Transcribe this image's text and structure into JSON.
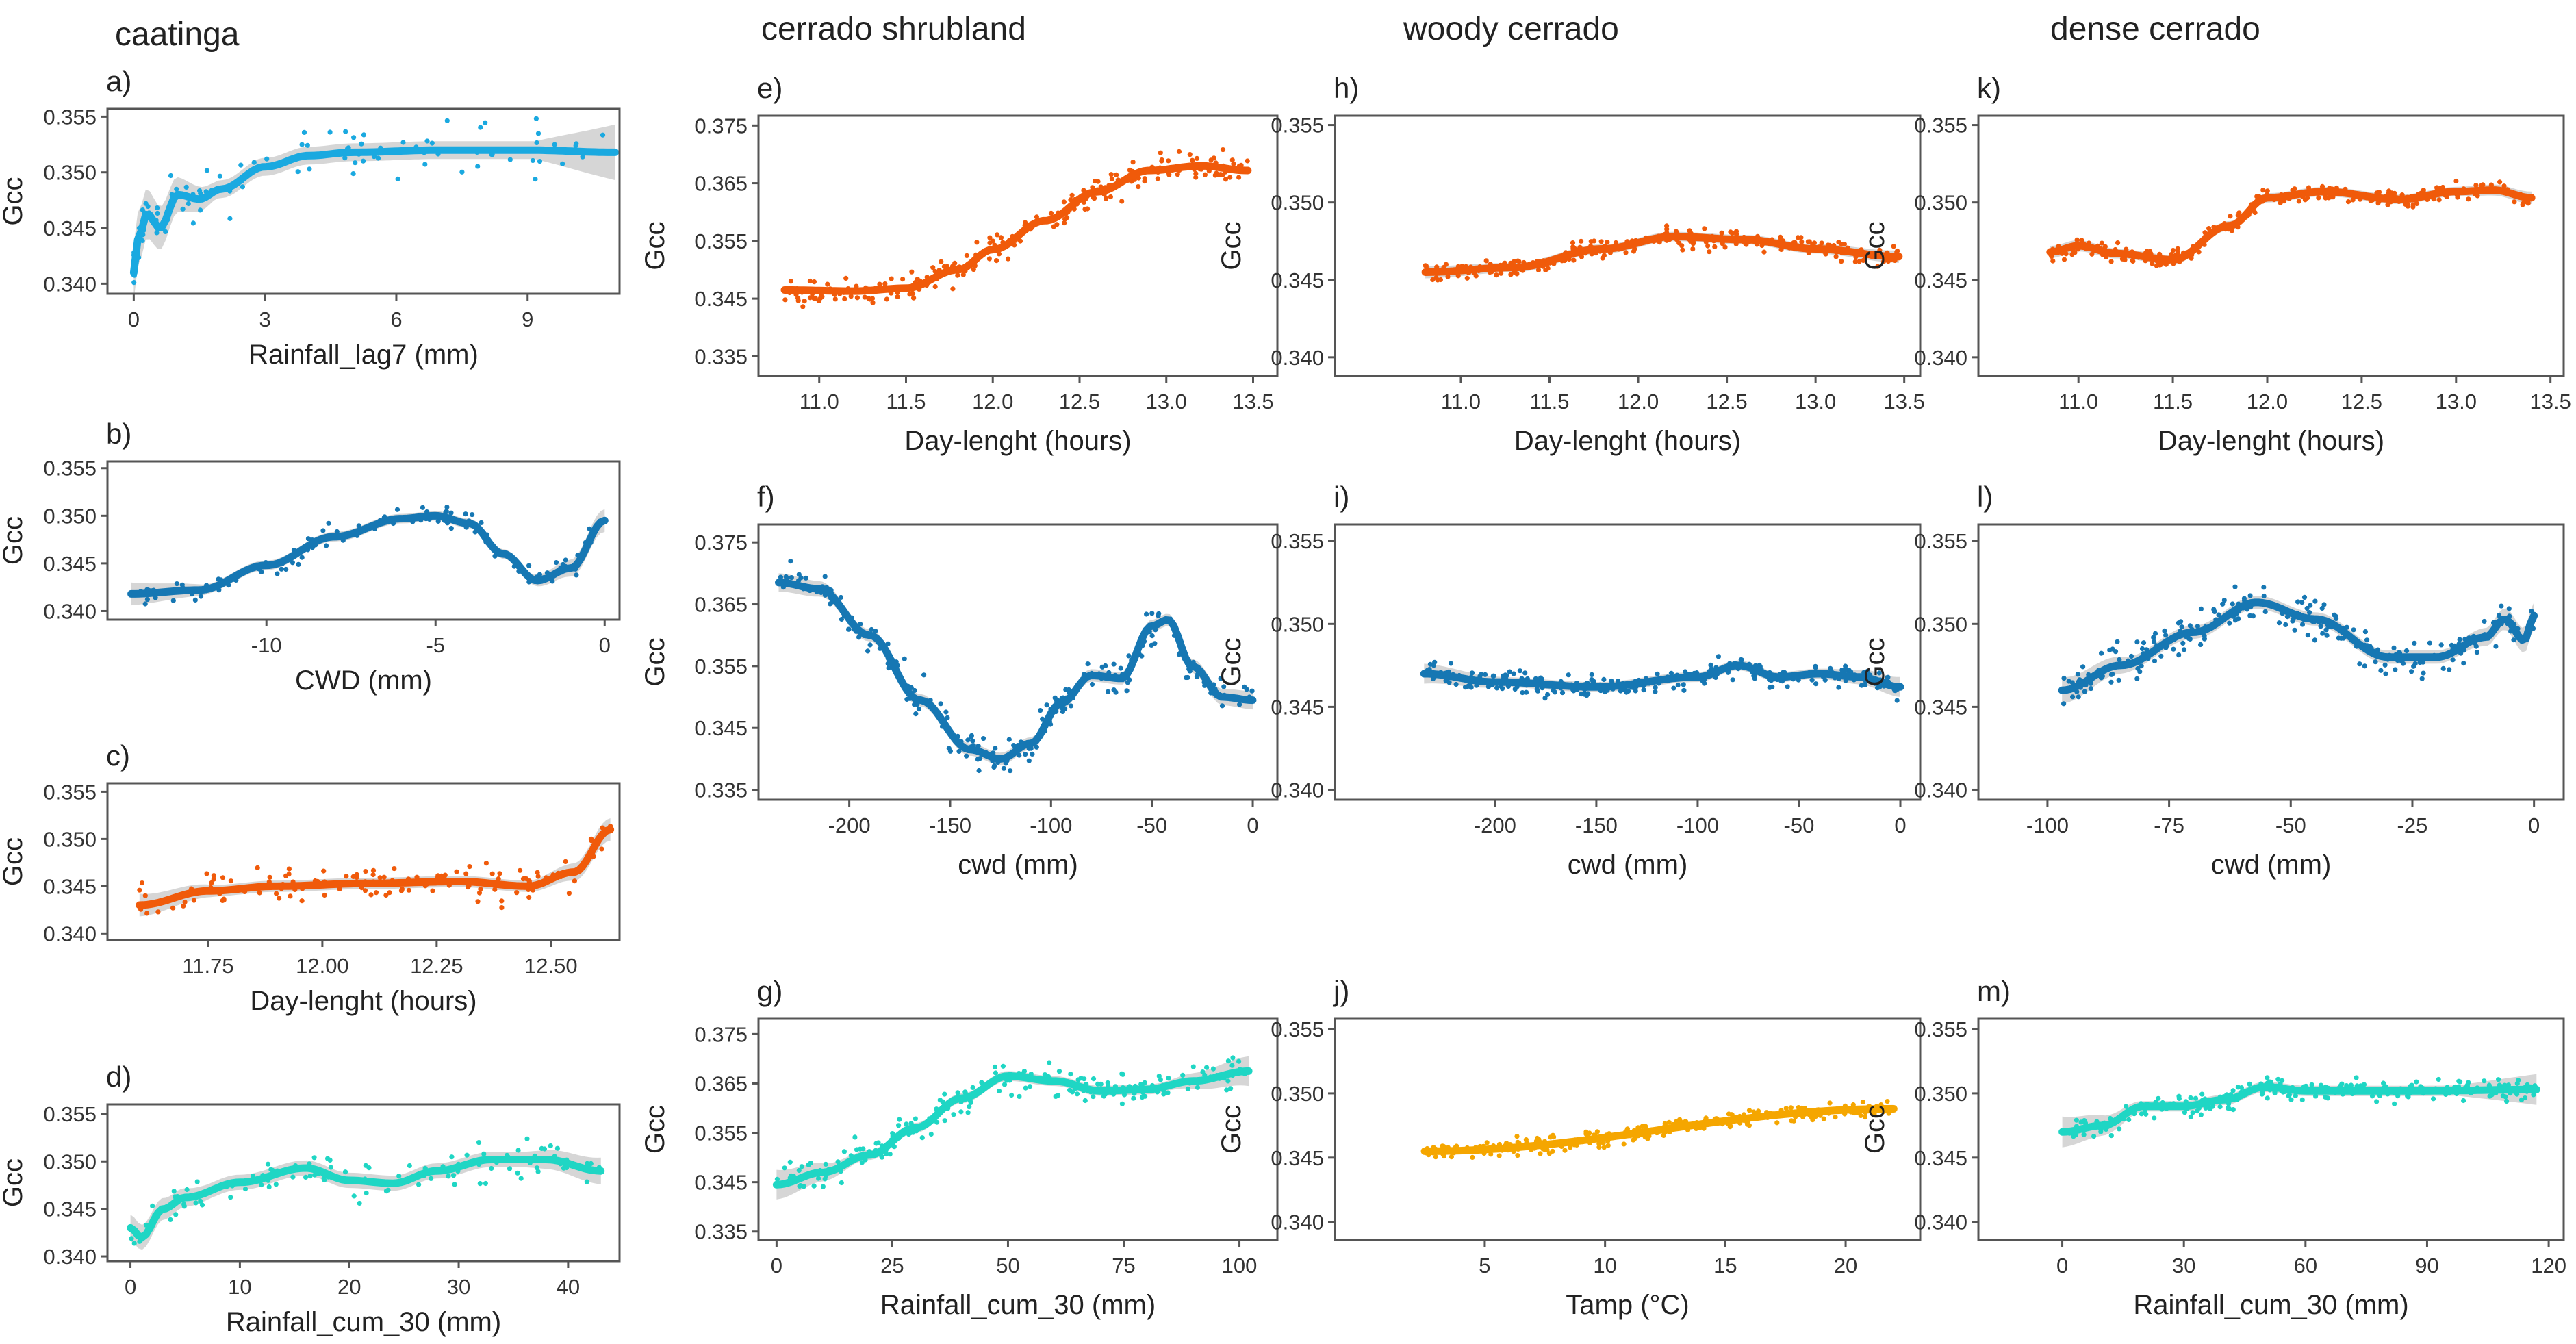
{
  "columns": [
    {
      "title": "caatinga"
    },
    {
      "title": "cerrado shrubland"
    },
    {
      "title": "woody cerrado"
    },
    {
      "title": "dense cerrado"
    }
  ],
  "colors": {
    "light_blue": "#1AA9E0",
    "dark_blue": "#1677B3",
    "orange": "#F05A0A",
    "teal": "#1FD6C4",
    "amber": "#F5A600",
    "band": "#CFCFCF"
  },
  "chart_data": [
    {
      "id": "a",
      "type": "scatter",
      "label": "a)",
      "column": 0,
      "row": 0,
      "xlabel": "Rainfall_lag7 (mm)",
      "ylabel": "Gcc",
      "color": "#1AA9E0",
      "xlim": [
        -0.6,
        11.1
      ],
      "ylim": [
        0.3391,
        0.3557
      ],
      "xticks": [
        0,
        3,
        6,
        9
      ],
      "xtick_labels": [
        "0",
        "3",
        "6",
        "9"
      ],
      "yticks": [
        0.34,
        0.345,
        0.35,
        0.355
      ],
      "ytick_labels": [
        "0.340",
        "0.345",
        "0.350",
        "0.355"
      ],
      "smooth": [
        [
          0,
          0.341
        ],
        [
          0.1,
          0.344
        ],
        [
          0.3,
          0.3463
        ],
        [
          0.6,
          0.345
        ],
        [
          1.0,
          0.348
        ],
        [
          1.5,
          0.3476
        ],
        [
          2,
          0.3485
        ],
        [
          3,
          0.3505
        ],
        [
          4,
          0.3515
        ],
        [
          5,
          0.3518
        ],
        [
          7,
          0.352
        ],
        [
          9,
          0.352
        ],
        [
          11,
          0.3518
        ]
      ],
      "band": [
        0.0008,
        0.0025
      ],
      "n_points": 110,
      "spread": 0.003
    },
    {
      "id": "b",
      "type": "scatter",
      "label": "b)",
      "column": 0,
      "row": 1,
      "xlabel": "CWD (mm)",
      "ylabel": "Gcc",
      "color": "#1677B3",
      "xlim": [
        -14.7,
        0.44
      ],
      "ylim": [
        0.3391,
        0.3557
      ],
      "xticks": [
        -10,
        -5,
        0
      ],
      "xtick_labels": [
        "-10",
        "-5",
        "0"
      ],
      "yticks": [
        0.34,
        0.345,
        0.35,
        0.355
      ],
      "ytick_labels": [
        "0.340",
        "0.345",
        "0.350",
        "0.355"
      ],
      "smooth": [
        [
          -14,
          0.3418
        ],
        [
          -12,
          0.3422
        ],
        [
          -10,
          0.3448
        ],
        [
          -8,
          0.3478
        ],
        [
          -6,
          0.3497
        ],
        [
          -5,
          0.35
        ],
        [
          -4,
          0.3492
        ],
        [
          -3,
          0.346
        ],
        [
          -2,
          0.3432
        ],
        [
          -1,
          0.3445
        ],
        [
          0,
          0.3495
        ]
      ],
      "band": [
        0.0005,
        0.0012
      ],
      "n_points": 130,
      "spread": 0.0015
    },
    {
      "id": "c",
      "type": "scatter",
      "label": "c)",
      "column": 0,
      "row": 2,
      "xlabel": "Day-lenght (hours)",
      "ylabel": "Gcc",
      "color": "#F05A0A",
      "xlim": [
        11.53,
        12.65
      ],
      "ylim": [
        0.3393,
        0.3559
      ],
      "xticks": [
        11.75,
        12.0,
        12.25,
        12.5
      ],
      "xtick_labels": [
        "11.75",
        "12.00",
        "12.25",
        "12.50"
      ],
      "yticks": [
        0.34,
        0.345,
        0.35,
        0.355
      ],
      "ytick_labels": [
        "0.340",
        "0.345",
        "0.350",
        "0.355"
      ],
      "smooth": [
        [
          11.6,
          0.343
        ],
        [
          11.75,
          0.3445
        ],
        [
          11.9,
          0.345
        ],
        [
          12.1,
          0.3453
        ],
        [
          12.3,
          0.3455
        ],
        [
          12.45,
          0.345
        ],
        [
          12.55,
          0.3465
        ],
        [
          12.63,
          0.351
        ]
      ],
      "band": [
        0.0006,
        0.0012
      ],
      "n_points": 140,
      "spread": 0.0028
    },
    {
      "id": "d",
      "type": "scatter",
      "label": "d)",
      "column": 0,
      "row": 3,
      "xlabel": "Rainfall_cum_30 (mm)",
      "ylabel": "Gcc",
      "color": "#1FD6C4",
      "xlim": [
        -2.1,
        44.7
      ],
      "ylim": [
        0.3395,
        0.356
      ],
      "xticks": [
        0,
        10,
        20,
        30,
        40
      ],
      "xtick_labels": [
        "0",
        "10",
        "20",
        "30",
        "40"
      ],
      "yticks": [
        0.34,
        0.345,
        0.35,
        0.355
      ],
      "ytick_labels": [
        "0.340",
        "0.345",
        "0.350",
        "0.355"
      ],
      "smooth": [
        [
          0,
          0.343
        ],
        [
          1,
          0.342
        ],
        [
          3,
          0.345
        ],
        [
          5,
          0.3462
        ],
        [
          10,
          0.3478
        ],
        [
          16,
          0.3493
        ],
        [
          20,
          0.348
        ],
        [
          24,
          0.3477
        ],
        [
          28,
          0.349
        ],
        [
          33,
          0.3502
        ],
        [
          38,
          0.3502
        ],
        [
          43,
          0.349
        ]
      ],
      "band": [
        0.0008,
        0.0014
      ],
      "n_points": 120,
      "spread": 0.0028
    },
    {
      "id": "e",
      "type": "scatter",
      "label": "e)",
      "column": 1,
      "row": 0,
      "xlabel": "Day-lenght (hours)",
      "ylabel": "Gcc",
      "color": "#F05A0A",
      "xlim": [
        10.65,
        13.64
      ],
      "ylim": [
        0.3316,
        0.3767
      ],
      "xticks": [
        11.0,
        11.5,
        12.0,
        12.5,
        13.0,
        13.5
      ],
      "xtick_labels": [
        "11.0",
        "11.5",
        "12.0",
        "12.5",
        "13.0",
        "13.5"
      ],
      "yticks": [
        0.335,
        0.345,
        0.355,
        0.365,
        0.375
      ],
      "ytick_labels": [
        "0.335",
        "0.345",
        "0.355",
        "0.365",
        "0.375"
      ],
      "smooth": [
        [
          10.8,
          0.3465
        ],
        [
          11.2,
          0.3463
        ],
        [
          11.5,
          0.3468
        ],
        [
          11.8,
          0.35
        ],
        [
          12.0,
          0.3535
        ],
        [
          12.3,
          0.3585
        ],
        [
          12.6,
          0.3635
        ],
        [
          12.9,
          0.3672
        ],
        [
          13.2,
          0.368
        ],
        [
          13.47,
          0.3672
        ]
      ],
      "band": [
        0.0003,
        0.0005
      ],
      "n_points": 260,
      "spread": 0.0035
    },
    {
      "id": "f",
      "type": "scatter",
      "label": "f)",
      "column": 1,
      "row": 1,
      "xlabel": "cwd (mm)",
      "ylabel": "Gcc",
      "color": "#1677B3",
      "xlim": [
        -245,
        12.2
      ],
      "ylim": [
        0.3334,
        0.3779
      ],
      "xticks": [
        -200,
        -150,
        -100,
        -50,
        0
      ],
      "xtick_labels": [
        "-200",
        "-150",
        "-100",
        "-50",
        "0"
      ],
      "yticks": [
        0.335,
        0.345,
        0.355,
        0.365,
        0.375
      ],
      "ytick_labels": [
        "0.335",
        "0.345",
        "0.355",
        "0.365",
        "0.375"
      ],
      "smooth": [
        [
          -235,
          0.3685
        ],
        [
          -215,
          0.3675
        ],
        [
          -190,
          0.36
        ],
        [
          -165,
          0.3495
        ],
        [
          -140,
          0.3415
        ],
        [
          -125,
          0.34
        ],
        [
          -110,
          0.3425
        ],
        [
          -95,
          0.349
        ],
        [
          -80,
          0.3535
        ],
        [
          -65,
          0.353
        ],
        [
          -50,
          0.3615
        ],
        [
          -42,
          0.3625
        ],
        [
          -30,
          0.355
        ],
        [
          -15,
          0.35
        ],
        [
          0,
          0.3495
        ]
      ],
      "band": [
        0.001,
        0.0015
      ],
      "n_points": 240,
      "spread": 0.004
    },
    {
      "id": "g",
      "type": "scatter",
      "label": "g)",
      "column": 1,
      "row": 2,
      "xlabel": "Rainfall_cum_30 (mm)",
      "ylabel": "Gcc",
      "color": "#1FD6C4",
      "xlim": [
        -3.9,
        108.2
      ],
      "ylim": [
        0.3333,
        0.3781
      ],
      "xticks": [
        0,
        25,
        50,
        75,
        100
      ],
      "xtick_labels": [
        "0",
        "25",
        "50",
        "75",
        "100"
      ],
      "yticks": [
        0.335,
        0.345,
        0.355,
        0.365,
        0.375
      ],
      "ytick_labels": [
        "0.335",
        "0.345",
        "0.355",
        "0.365",
        "0.375"
      ],
      "smooth": [
        [
          0,
          0.3445
        ],
        [
          10,
          0.347
        ],
        [
          20,
          0.3505
        ],
        [
          30,
          0.356
        ],
        [
          40,
          0.362
        ],
        [
          50,
          0.3665
        ],
        [
          60,
          0.3655
        ],
        [
          70,
          0.3635
        ],
        [
          80,
          0.3638
        ],
        [
          90,
          0.3655
        ],
        [
          102,
          0.3675
        ]
      ],
      "band": [
        0.001,
        0.003
      ],
      "n_points": 230,
      "spread": 0.0045
    },
    {
      "id": "h",
      "type": "scatter",
      "label": "h)",
      "column": 2,
      "row": 0,
      "xlabel": "Day-lenght (hours)",
      "ylabel": "Gcc",
      "color": "#F05A0A",
      "xlim": [
        10.29,
        13.59
      ],
      "ylim": [
        0.3388,
        0.3556
      ],
      "xticks": [
        11.0,
        11.5,
        12.0,
        12.5,
        13.0,
        13.5
      ],
      "xtick_labels": [
        "11.0",
        "11.5",
        "12.0",
        "12.5",
        "13.0",
        "13.5"
      ],
      "yticks": [
        0.34,
        0.345,
        0.35,
        0.355
      ],
      "ytick_labels": [
        "0.340",
        "0.345",
        "0.350",
        "0.355"
      ],
      "smooth": [
        [
          10.8,
          0.3455
        ],
        [
          11.3,
          0.3458
        ],
        [
          11.8,
          0.347
        ],
        [
          12.2,
          0.3478
        ],
        [
          12.6,
          0.3476
        ],
        [
          13.0,
          0.347
        ],
        [
          13.47,
          0.3465
        ]
      ],
      "band": [
        0.0003,
        0.0004
      ],
      "n_points": 300,
      "spread": 0.0009
    },
    {
      "id": "i",
      "type": "scatter",
      "label": "i)",
      "column": 2,
      "row": 1,
      "xlabel": "cwd (mm)",
      "ylabel": "Gcc",
      "color": "#1677B3",
      "xlim": [
        -279,
        9.8
      ],
      "ylim": [
        0.3394,
        0.356
      ],
      "xticks": [
        -200,
        -150,
        -100,
        -50,
        0
      ],
      "xtick_labels": [
        "-200",
        "-150",
        "-100",
        "-50",
        "0"
      ],
      "yticks": [
        0.34,
        0.345,
        0.35,
        0.355
      ],
      "ytick_labels": [
        "0.340",
        "0.345",
        "0.350",
        "0.355"
      ],
      "smooth": [
        [
          -235,
          0.347
        ],
        [
          -200,
          0.3465
        ],
        [
          -150,
          0.3462
        ],
        [
          -100,
          0.3468
        ],
        [
          -80,
          0.3475
        ],
        [
          -60,
          0.3468
        ],
        [
          -40,
          0.347
        ],
        [
          -20,
          0.3468
        ],
        [
          0,
          0.3462
        ]
      ],
      "band": [
        0.0003,
        0.0006
      ],
      "n_points": 300,
      "spread": 0.0009
    },
    {
      "id": "j",
      "type": "scatter",
      "label": "j)",
      "column": 2,
      "row": 2,
      "xlabel": "Tamp (°C)",
      "ylabel": "Gcc",
      "color": "#F5A600",
      "xlim": [
        -1.23,
        23.1
      ],
      "ylim": [
        0.3386,
        0.3558
      ],
      "xticks": [
        5,
        10,
        15,
        20
      ],
      "xtick_labels": [
        "5",
        "10",
        "15",
        "20"
      ],
      "yticks": [
        0.34,
        0.345,
        0.35,
        0.355
      ],
      "ytick_labels": [
        "0.340",
        "0.345",
        "0.350",
        "0.355"
      ],
      "smooth": [
        [
          2.5,
          0.3455
        ],
        [
          22,
          0.3488
        ]
      ],
      "band": [
        0.0002,
        0.0003
      ],
      "n_points": 320,
      "spread": 0.0009
    },
    {
      "id": "k",
      "type": "scatter",
      "label": "k)",
      "column": 3,
      "row": 0,
      "xlabel": "Day-lenght (hours)",
      "ylabel": "Gcc",
      "color": "#F05A0A",
      "xlim": [
        10.47,
        13.57
      ],
      "ylim": [
        0.3388,
        0.3556
      ],
      "xticks": [
        11.0,
        11.5,
        12.0,
        12.5,
        13.0,
        13.5
      ],
      "xtick_labels": [
        "11.0",
        "11.5",
        "12.0",
        "12.5",
        "13.0",
        "13.5"
      ],
      "yticks": [
        0.34,
        0.345,
        0.35,
        0.355
      ],
      "ytick_labels": [
        "0.340",
        "0.345",
        "0.350",
        "0.355"
      ],
      "smooth": [
        [
          10.85,
          0.3468
        ],
        [
          11.0,
          0.3472
        ],
        [
          11.2,
          0.3467
        ],
        [
          11.5,
          0.3463
        ],
        [
          11.8,
          0.3485
        ],
        [
          12.0,
          0.3503
        ],
        [
          12.3,
          0.3507
        ],
        [
          12.7,
          0.3502
        ],
        [
          13.0,
          0.3507
        ],
        [
          13.2,
          0.3508
        ],
        [
          13.4,
          0.3503
        ]
      ],
      "band": [
        0.0003,
        0.0004
      ],
      "n_points": 300,
      "spread": 0.0008
    },
    {
      "id": "l",
      "type": "scatter",
      "label": "l)",
      "column": 3,
      "row": 1,
      "xlabel": "cwd (mm)",
      "ylabel": "Gcc",
      "color": "#1677B3",
      "xlim": [
        -114.2,
        6.1
      ],
      "ylim": [
        0.3394,
        0.356
      ],
      "xticks": [
        -100,
        -75,
        -50,
        -25,
        0
      ],
      "xtick_labels": [
        "-100",
        "-75",
        "-50",
        "-25",
        "0"
      ],
      "yticks": [
        0.34,
        0.345,
        0.35,
        0.355
      ],
      "ytick_labels": [
        "0.340",
        "0.345",
        "0.350",
        "0.355"
      ],
      "smooth": [
        [
          -97,
          0.346
        ],
        [
          -85,
          0.3475
        ],
        [
          -70,
          0.3495
        ],
        [
          -57,
          0.3513
        ],
        [
          -45,
          0.3503
        ],
        [
          -30,
          0.348
        ],
        [
          -20,
          0.348
        ],
        [
          -10,
          0.3492
        ],
        [
          -6,
          0.3503
        ],
        [
          -2,
          0.349
        ],
        [
          0,
          0.3505
        ]
      ],
      "band": [
        0.0004,
        0.0008
      ],
      "n_points": 260,
      "spread": 0.0016
    },
    {
      "id": "m",
      "type": "scatter",
      "label": "m)",
      "column": 3,
      "row": 2,
      "xlabel": "Rainfall_cum_30 (mm)",
      "ylabel": "Gcc",
      "color": "#1FD6C4",
      "xlim": [
        -20.7,
        123.7
      ],
      "ylim": [
        0.3386,
        0.3558
      ],
      "xticks": [
        0,
        30,
        60,
        90,
        120
      ],
      "xtick_labels": [
        "0",
        "30",
        "60",
        "90",
        "120"
      ],
      "yticks": [
        0.34,
        0.345,
        0.35,
        0.355
      ],
      "ytick_labels": [
        "0.340",
        "0.345",
        "0.350",
        "0.355"
      ],
      "smooth": [
        [
          0,
          0.347
        ],
        [
          10,
          0.3475
        ],
        [
          20,
          0.349
        ],
        [
          30,
          0.349
        ],
        [
          40,
          0.3495
        ],
        [
          50,
          0.3505
        ],
        [
          60,
          0.3502
        ],
        [
          90,
          0.3502
        ],
        [
          117,
          0.3503
        ]
      ],
      "band": [
        0.0004,
        0.0012
      ],
      "n_points": 260,
      "spread": 0.0012
    }
  ]
}
